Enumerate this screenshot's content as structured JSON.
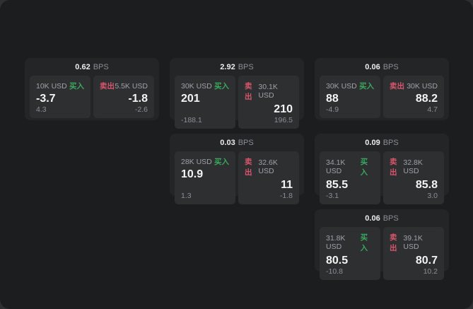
{
  "labels": {
    "bps_unit": "BPS",
    "buy": "买入",
    "sell": "卖出"
  },
  "colors": {
    "window_bg": "#1b1d1e",
    "card_bg": "#242527",
    "panel_bg": "#2d2f31",
    "buy_green": "#3aa85c",
    "sell_red": "#d9556b"
  },
  "cards": [
    {
      "spread": "0.62",
      "buy": {
        "amount": "10K USD",
        "price": "-3.7",
        "delta": "4.3"
      },
      "sell": {
        "amount": "5.5K USD",
        "price": "-1.8",
        "delta": "-2.6"
      }
    },
    {
      "spread": "2.92",
      "buy": {
        "amount": "30K USD",
        "price": "201",
        "delta": "-188.1"
      },
      "sell": {
        "amount": "30.1K USD",
        "price": "210",
        "delta": "196.5"
      }
    },
    {
      "spread": "0.06",
      "buy": {
        "amount": "30K USD",
        "price": "88",
        "delta": "-4.9"
      },
      "sell": {
        "amount": "30K USD",
        "price": "88.2",
        "delta": "4.7"
      }
    },
    {
      "spread": "0.03",
      "buy": {
        "amount": "28K USD",
        "price": "10.9",
        "delta": "1.3"
      },
      "sell": {
        "amount": "32.6K USD",
        "price": "11",
        "delta": "-1.8"
      }
    },
    {
      "spread": "0.09",
      "buy": {
        "amount": "34.1K USD",
        "price": "85.5",
        "delta": "-3.1"
      },
      "sell": {
        "amount": "32.8K USD",
        "price": "85.8",
        "delta": "3.0"
      }
    },
    {
      "spread": "0.06",
      "buy": {
        "amount": "31.8K USD",
        "price": "80.5",
        "delta": "-10.8"
      },
      "sell": {
        "amount": "39.1K USD",
        "price": "80.7",
        "delta": "10.2"
      }
    }
  ]
}
